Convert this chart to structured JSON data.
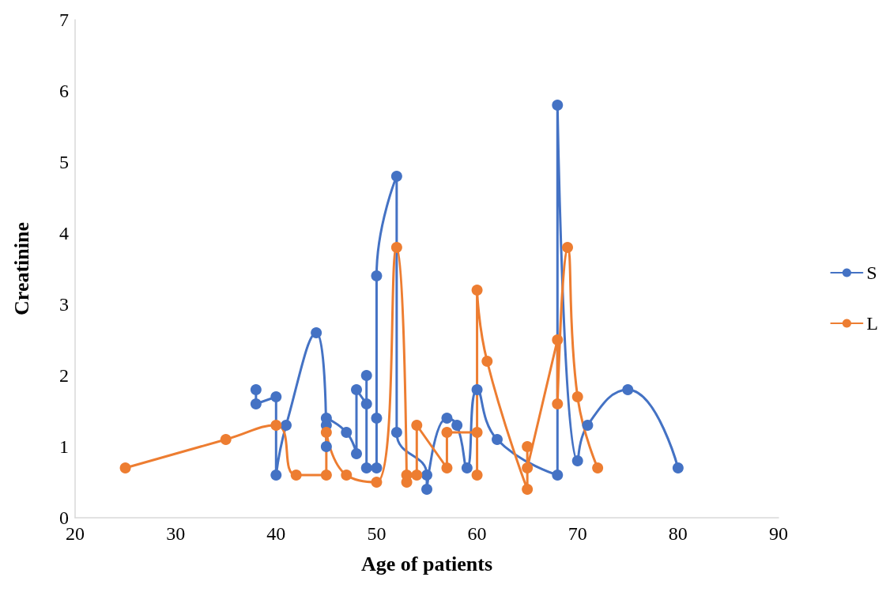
{
  "chart_data": {
    "type": "line",
    "xlabel": "Age of patients",
    "ylabel": "Creatinine",
    "xlim": [
      20,
      90
    ],
    "xticks": [
      20,
      30,
      40,
      50,
      60,
      70,
      80,
      90
    ],
    "ylim": [
      0,
      7
    ],
    "yticks": [
      0,
      1,
      2,
      3,
      4,
      5,
      6,
      7
    ],
    "grid": false,
    "legend": "right",
    "marker": "circle",
    "line_style": "solid",
    "series": [
      {
        "name": "S",
        "color": "#4472c4",
        "x": [
          38,
          38,
          40,
          40,
          41,
          44,
          45,
          45,
          45,
          47,
          48,
          48,
          49,
          49,
          49,
          50,
          50,
          50,
          52,
          52,
          55,
          55,
          57,
          58,
          59,
          60,
          62,
          68,
          68,
          70,
          71,
          75,
          80
        ],
        "values": [
          1.8,
          1.6,
          1.7,
          0.6,
          1.3,
          2.6,
          1.0,
          1.3,
          1.4,
          1.2,
          0.9,
          1.8,
          1.6,
          2.0,
          0.7,
          0.7,
          1.4,
          3.4,
          4.8,
          1.2,
          0.6,
          0.4,
          1.4,
          1.3,
          0.7,
          1.8,
          1.1,
          0.6,
          5.8,
          0.8,
          1.3,
          1.8,
          0.7
        ]
      },
      {
        "name": "L",
        "color": "#ed7d31",
        "x": [
          25,
          35,
          40,
          42,
          45,
          45,
          47,
          50,
          52,
          53,
          53,
          54,
          54,
          57,
          57,
          60,
          60,
          60,
          61,
          65,
          65,
          65,
          68,
          68,
          69,
          70,
          72
        ],
        "values": [
          0.7,
          1.1,
          1.3,
          0.6,
          0.6,
          1.2,
          0.6,
          0.5,
          3.8,
          0.5,
          0.6,
          0.6,
          1.3,
          0.7,
          1.2,
          1.2,
          0.6,
          3.2,
          2.2,
          0.4,
          1.0,
          0.7,
          2.5,
          1.6,
          3.8,
          1.7,
          0.7
        ]
      }
    ]
  }
}
